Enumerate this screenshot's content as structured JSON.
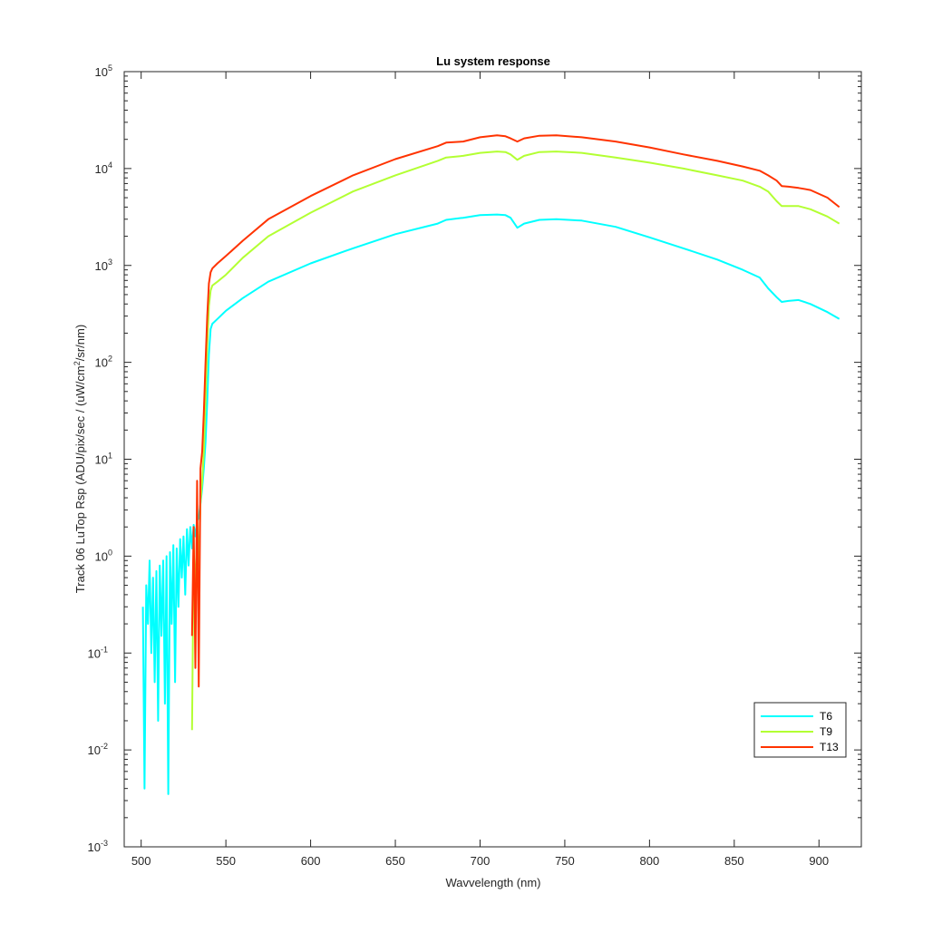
{
  "chart_data": {
    "type": "line",
    "title": "Lu system response",
    "xlabel": "Wavvelength (nm)",
    "ylabel_main": "Track 06 LuTop Rsp (ADU/pix/sec / (uW/cm",
    "ylabel_sup": "2",
    "ylabel_tail": "/sr/nm)",
    "xlim": [
      490,
      925
    ],
    "ylim": [
      0.001,
      100000
    ],
    "yscale": "log",
    "grid": false,
    "legend_placement": "bottom-right",
    "x_ticks": [
      500,
      550,
      600,
      650,
      700,
      750,
      800,
      850,
      900
    ],
    "x_tick_labels": [
      "500",
      "550",
      "600",
      "650",
      "700",
      "750",
      "800",
      "850",
      "900"
    ],
    "y_ticks": [
      {
        "value": 0.001,
        "base": "10",
        "exp": "-3"
      },
      {
        "value": 0.01,
        "base": "10",
        "exp": "-2"
      },
      {
        "value": 0.1,
        "base": "10",
        "exp": "-1"
      },
      {
        "value": 1,
        "base": "10",
        "exp": "0"
      },
      {
        "value": 10,
        "base": "10",
        "exp": "1"
      },
      {
        "value": 100,
        "base": "10",
        "exp": "2"
      },
      {
        "value": 1000,
        "base": "10",
        "exp": "3"
      },
      {
        "value": 10000,
        "base": "10",
        "exp": "4"
      },
      {
        "value": 100000,
        "base": "10",
        "exp": "5"
      }
    ],
    "series": [
      {
        "name": "T6",
        "color": "#00ffff",
        "x": [
          501,
          502,
          503,
          504,
          505,
          506,
          507,
          508,
          509,
          510,
          511,
          512,
          513,
          514,
          515,
          516,
          517,
          518,
          519,
          520,
          521,
          522,
          523,
          524,
          525,
          526,
          527,
          528,
          529,
          530,
          531,
          532,
          533,
          534,
          535,
          536,
          537,
          538,
          539,
          540,
          541,
          542,
          545,
          550,
          560,
          575,
          600,
          625,
          650,
          675,
          680,
          690,
          700,
          710,
          715,
          718,
          722,
          726,
          735,
          745,
          760,
          780,
          800,
          820,
          840,
          855,
          865,
          870,
          875,
          878,
          882,
          888,
          895,
          905,
          912
        ],
        "y": [
          0.3,
          0.004,
          0.5,
          0.2,
          0.9,
          0.1,
          0.6,
          0.05,
          0.7,
          0.02,
          0.8,
          0.15,
          0.9,
          0.03,
          1.0,
          0.0035,
          1.1,
          0.2,
          1.3,
          0.05,
          1.2,
          0.3,
          1.5,
          0.6,
          1.6,
          0.4,
          1.9,
          0.8,
          2.0,
          1.2,
          2.1,
          1.6,
          2.3,
          2.5,
          3.5,
          5,
          8,
          15,
          40,
          120,
          220,
          250,
          280,
          340,
          460,
          680,
          1050,
          1500,
          2100,
          2700,
          2950,
          3100,
          3300,
          3350,
          3300,
          3100,
          2450,
          2700,
          2950,
          3000,
          2900,
          2500,
          1950,
          1500,
          1150,
          900,
          750,
          580,
          470,
          420,
          430,
          440,
          400,
          330,
          280
        ]
      },
      {
        "name": "T9",
        "color": "#b3ff33",
        "x": [
          530,
          531,
          532,
          533,
          534,
          535,
          536,
          537,
          538,
          539,
          540,
          541,
          542,
          545,
          550,
          560,
          575,
          600,
          625,
          650,
          675,
          680,
          690,
          700,
          710,
          715,
          718,
          722,
          726,
          735,
          745,
          760,
          780,
          800,
          820,
          840,
          855,
          865,
          870,
          875,
          878,
          882,
          888,
          895,
          905,
          912
        ],
        "y": [
          0.016,
          1.2,
          0.4,
          2.5,
          0.8,
          3.5,
          6,
          12,
          40,
          150,
          380,
          550,
          620,
          680,
          800,
          1200,
          2000,
          3500,
          5800,
          8500,
          12000,
          13000,
          13500,
          14500,
          15000,
          14800,
          14000,
          12300,
          13500,
          14800,
          15000,
          14500,
          13000,
          11500,
          10000,
          8500,
          7500,
          6500,
          5800,
          4600,
          4100,
          4100,
          4100,
          3800,
          3200,
          2700
        ]
      },
      {
        "name": "T13",
        "color": "#ff3300",
        "x": [
          530,
          531,
          532,
          533,
          534,
          535,
          536,
          537,
          538,
          539,
          540,
          541,
          542,
          545,
          550,
          560,
          575,
          600,
          625,
          650,
          675,
          680,
          690,
          700,
          710,
          715,
          718,
          722,
          726,
          735,
          745,
          760,
          780,
          800,
          820,
          840,
          855,
          865,
          870,
          875,
          878,
          882,
          888,
          895,
          905,
          912
        ],
        "y": [
          0.15,
          2.0,
          0.07,
          6,
          0.045,
          8,
          12,
          30,
          100,
          300,
          650,
          850,
          930,
          1050,
          1250,
          1800,
          3000,
          5200,
          8500,
          12500,
          17000,
          18500,
          19000,
          21000,
          22000,
          21500,
          20500,
          19000,
          20500,
          21800,
          22000,
          21000,
          19000,
          16500,
          14000,
          12000,
          10500,
          9500,
          8500,
          7500,
          6600,
          6500,
          6300,
          6000,
          5000,
          4000
        ]
      }
    ]
  }
}
